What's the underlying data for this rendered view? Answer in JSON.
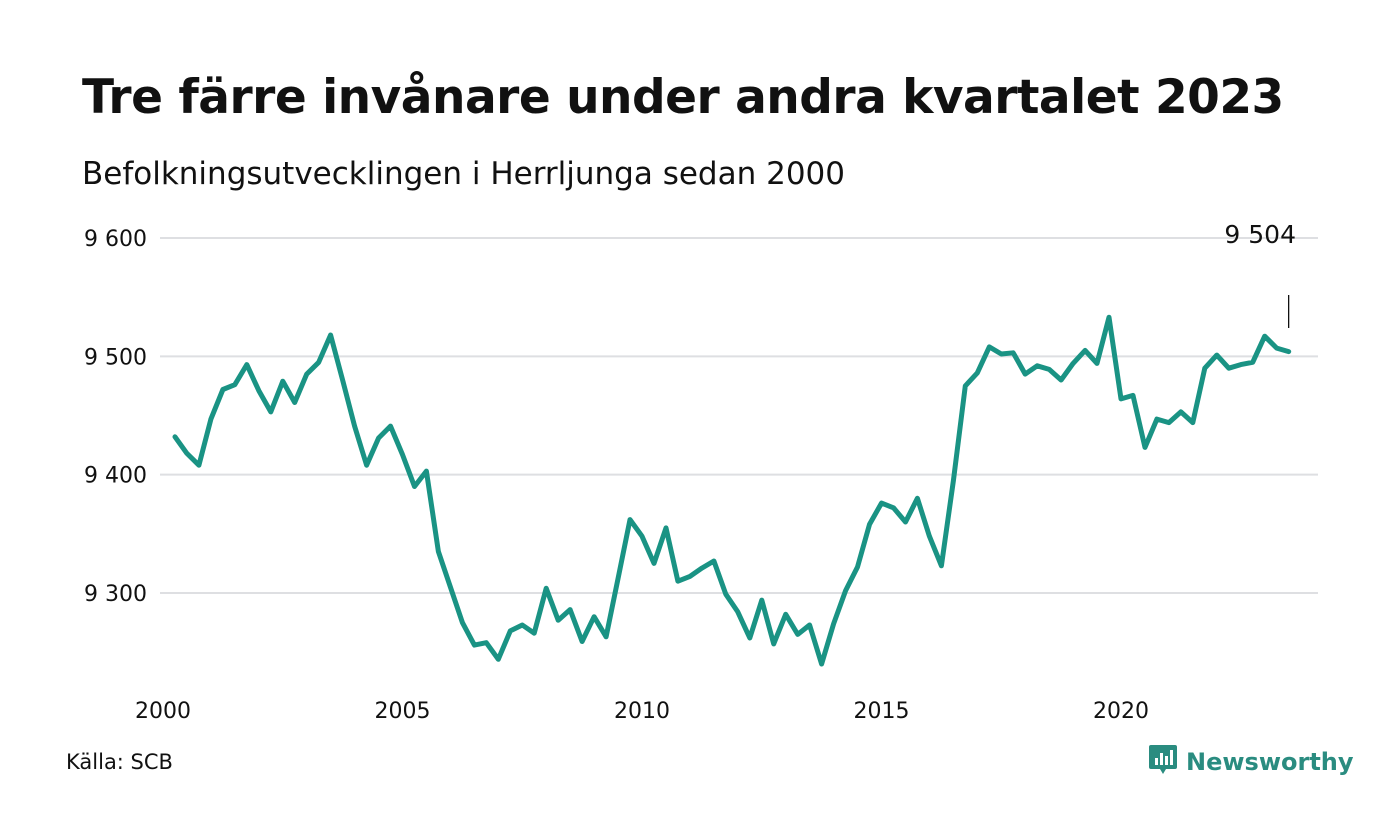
{
  "title": "Tre färre invånare under andra kvartalet 2023",
  "subtitle": "Befolkningsutvecklingen i Herrljunga sedan 2000",
  "source": "Källa: SCB",
  "brand": {
    "name": "Newsworthy",
    "icon": "newsworthy-logo-icon"
  },
  "colors": {
    "line": "#1a9384",
    "grid": "#dedfe2",
    "brand": "#2a8c80"
  },
  "chart_data": {
    "type": "line",
    "xlim": [
      2000,
      2024
    ],
    "ylim": [
      9220,
      9600
    ],
    "y_ticks": [
      9300,
      9400,
      9500,
      9600
    ],
    "y_tick_labels": [
      "9 300",
      "9 400",
      "9 500",
      "9 600"
    ],
    "x_ticks": [
      2000,
      2005,
      2010,
      2015,
      2020
    ],
    "x_tick_labels": [
      "2000",
      "2005",
      "2010",
      "2015",
      "2020"
    ],
    "grid": true,
    "last_value_label": "9 504",
    "series": [
      {
        "values": [
          [
            2000.25,
            9432
          ],
          [
            2000.5,
            9418
          ],
          [
            2000.75,
            9408
          ],
          [
            2001,
            9447
          ],
          [
            2001.25,
            9472
          ],
          [
            2001.5,
            9476
          ],
          [
            2001.75,
            9493
          ],
          [
            2002,
            9471
          ],
          [
            2002.25,
            9453
          ],
          [
            2002.5,
            9479
          ],
          [
            2002.75,
            9461
          ],
          [
            2003,
            9485
          ],
          [
            2003.25,
            9495
          ],
          [
            2003.5,
            9518
          ],
          [
            2003.75,
            9480
          ],
          [
            2004,
            9441
          ],
          [
            2004.25,
            9408
          ],
          [
            2004.5,
            9431
          ],
          [
            2004.75,
            9441
          ],
          [
            2005,
            9417
          ],
          [
            2005.25,
            9390
          ],
          [
            2005.5,
            9403
          ],
          [
            2005.75,
            9335
          ],
          [
            2006,
            9305
          ],
          [
            2006.25,
            9275
          ],
          [
            2006.5,
            9256
          ],
          [
            2006.75,
            9258
          ],
          [
            2007,
            9244
          ],
          [
            2007.25,
            9268
          ],
          [
            2007.5,
            9273
          ],
          [
            2007.75,
            9266
          ],
          [
            2008,
            9304
          ],
          [
            2008.25,
            9277
          ],
          [
            2008.5,
            9286
          ],
          [
            2008.75,
            9259
          ],
          [
            2009,
            9280
          ],
          [
            2009.25,
            9263
          ],
          [
            2009.5,
            9312
          ],
          [
            2009.75,
            9362
          ],
          [
            2010,
            9348
          ],
          [
            2010.25,
            9325
          ],
          [
            2010.5,
            9355
          ],
          [
            2010.75,
            9310
          ],
          [
            2011,
            9314
          ],
          [
            2011.25,
            9321
          ],
          [
            2011.5,
            9327
          ],
          [
            2011.75,
            9299
          ],
          [
            2012,
            9284
          ],
          [
            2012.25,
            9262
          ],
          [
            2012.5,
            9294
          ],
          [
            2012.75,
            9257
          ],
          [
            2013,
            9282
          ],
          [
            2013.25,
            9265
          ],
          [
            2013.5,
            9273
          ],
          [
            2013.75,
            9240
          ],
          [
            2014,
            9274
          ],
          [
            2014.25,
            9302
          ],
          [
            2014.5,
            9322
          ],
          [
            2014.75,
            9358
          ],
          [
            2015,
            9376
          ],
          [
            2015.25,
            9372
          ],
          [
            2015.5,
            9360
          ],
          [
            2015.75,
            9380
          ],
          [
            2016,
            9348
          ],
          [
            2016.25,
            9323
          ],
          [
            2016.5,
            9395
          ],
          [
            2016.75,
            9475
          ],
          [
            2017,
            9486
          ],
          [
            2017.25,
            9508
          ],
          [
            2017.5,
            9502
          ],
          [
            2017.75,
            9503
          ],
          [
            2018,
            9485
          ],
          [
            2018.25,
            9492
          ],
          [
            2018.5,
            9489
          ],
          [
            2018.75,
            9480
          ],
          [
            2019,
            9494
          ],
          [
            2019.25,
            9505
          ],
          [
            2019.5,
            9494
          ],
          [
            2019.75,
            9533
          ],
          [
            2020,
            9464
          ],
          [
            2020.25,
            9467
          ],
          [
            2020.5,
            9423
          ],
          [
            2020.75,
            9447
          ],
          [
            2021,
            9444
          ],
          [
            2021.25,
            9453
          ],
          [
            2021.5,
            9444
          ],
          [
            2021.75,
            9490
          ],
          [
            2022,
            9501
          ],
          [
            2022.25,
            9490
          ],
          [
            2022.5,
            9493
          ],
          [
            2022.75,
            9495
          ],
          [
            2023,
            9517
          ],
          [
            2023.25,
            9507
          ],
          [
            2023.5,
            9504
          ]
        ]
      }
    ]
  }
}
